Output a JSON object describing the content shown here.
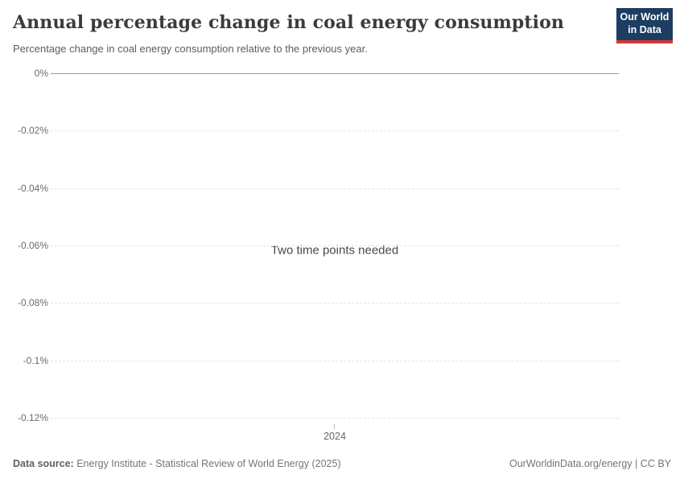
{
  "header": {
    "title": "Annual percentage change in coal energy consumption",
    "subtitle": "Percentage change in coal energy consumption relative to the previous year.",
    "logo": {
      "line1": "Our World",
      "line2": "in Data"
    }
  },
  "chart_data": {
    "type": "line",
    "title": "Annual percentage change in coal energy consumption",
    "subtitle": "Percentage change in coal energy consumption relative to the previous year.",
    "series": [],
    "message": "Two time points needed",
    "xlabel": "",
    "ylabel": "",
    "ylim": [
      -0.12,
      0
    ],
    "grid": true,
    "legend": "none",
    "x_ticks": [
      {
        "label": "2024",
        "x_frac": 0.5
      }
    ],
    "y_ticks": [
      {
        "label": "0%",
        "value": 0
      },
      {
        "label": "-0.02%",
        "value": -0.02
      },
      {
        "label": "-0.04%",
        "value": -0.04
      },
      {
        "label": "-0.06%",
        "value": -0.06
      },
      {
        "label": "-0.08%",
        "value": -0.08
      },
      {
        "label": "-0.1%",
        "value": -0.1
      },
      {
        "label": "-0.12%",
        "value": -0.12
      }
    ]
  },
  "footer": {
    "source_label": "Data source:",
    "source_text": "Energy Institute - Statistical Review of World Energy (2025)",
    "credit_text": "OurWorldinData.org/energy | CC BY"
  },
  "colors": {
    "logo_bg": "#1d3d63",
    "logo_accent": "#d73734",
    "axis_line": "#9e9e9e",
    "gridline": "#e3e3e3",
    "text_muted": "#6e6e6e"
  }
}
